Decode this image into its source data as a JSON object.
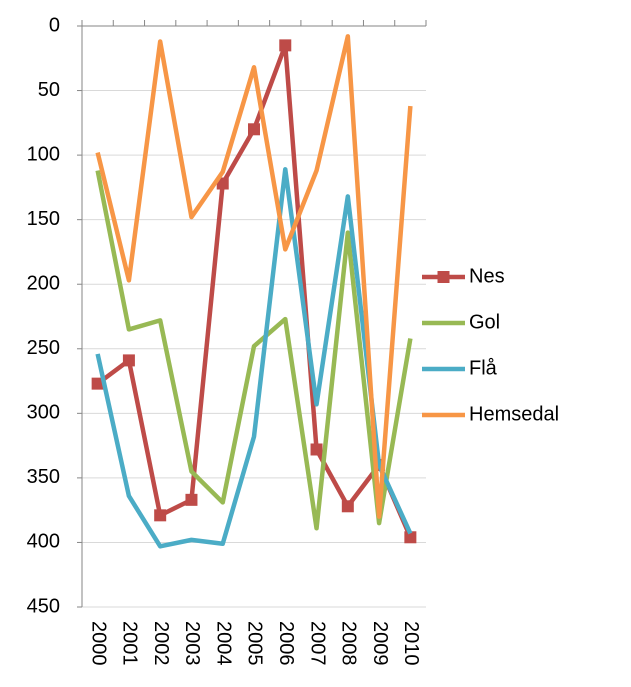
{
  "chart_data": {
    "type": "line",
    "categories": [
      "2000",
      "2001",
      "2002",
      "2003",
      "2004",
      "2005",
      "2006",
      "2007",
      "2008",
      "2009",
      "2010"
    ],
    "series": [
      {
        "name": "Nes",
        "color": "#be4b48",
        "marker": "square",
        "values": [
          277,
          259,
          379,
          367,
          122,
          80,
          15,
          328,
          372,
          340,
          396
        ]
      },
      {
        "name": "Gol",
        "color": "#98b954",
        "values": [
          112,
          235,
          228,
          345,
          369,
          248,
          227,
          389,
          160,
          385,
          242
        ]
      },
      {
        "name": "Flå",
        "color": "#4bacc6",
        "values": [
          254,
          364,
          403,
          398,
          401,
          318,
          111,
          293,
          132,
          340,
          393
        ]
      },
      {
        "name": "Hemsedal",
        "color": "#f79646",
        "values": [
          98,
          197,
          12,
          148,
          113,
          32,
          173,
          112,
          8,
          380,
          62
        ]
      }
    ],
    "ylim": [
      0,
      450
    ],
    "yticks": [
      0,
      50,
      100,
      150,
      200,
      250,
      300,
      350,
      400,
      450
    ],
    "y_reversed": true,
    "grid": true,
    "legend": "right"
  }
}
